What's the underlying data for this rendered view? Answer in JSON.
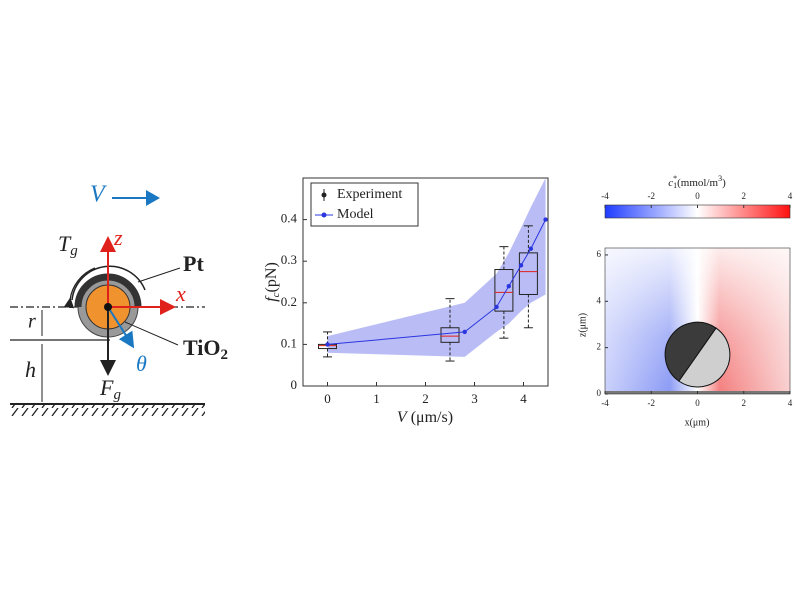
{
  "diagram": {
    "velocity": "V",
    "z_axis": "z",
    "x_axis": "x",
    "torque": {
      "symbol": "T",
      "sub": "g"
    },
    "pt": "Pt",
    "r": "r",
    "h": "h",
    "tio2": {
      "base": "TiO",
      "sub": "2"
    },
    "theta": "θ",
    "gravity": {
      "symbol": "F",
      "sub": "g"
    }
  },
  "chart_data": [
    {
      "type": "box",
      "xlabel": {
        "symbol": "V",
        "unit": "(μm/s)"
      },
      "ylabel": {
        "symbol": "f",
        "sub": "c",
        "unit": "(pN)"
      },
      "xlim": [
        -0.5,
        4.5
      ],
      "ylim": [
        0,
        0.5
      ],
      "xticks": [
        0,
        1,
        2,
        3,
        4
      ],
      "yticks": [
        0,
        0.1,
        0.2,
        0.3,
        0.4
      ],
      "legend": "upper left",
      "series": [
        {
          "name": "Experiment",
          "color": "#222222",
          "x": [
            0,
            2.5,
            3.6,
            4.1
          ],
          "whislo": [
            0.07,
            0.06,
            0.115,
            0.14
          ],
          "q1": [
            0.09,
            0.105,
            0.18,
            0.22
          ],
          "med": [
            0.097,
            0.12,
            0.225,
            0.275
          ],
          "q3": [
            0.1,
            0.14,
            0.28,
            0.32
          ],
          "whishi": [
            0.13,
            0.21,
            0.335,
            0.385
          ]
        },
        {
          "name": "Model",
          "color": "#2a35e0",
          "band_color": "#a9acf2",
          "x": [
            0,
            2.8,
            3.45,
            3.7,
            3.95,
            4.15,
            4.45
          ],
          "values": [
            0.1,
            0.13,
            0.19,
            0.24,
            0.29,
            0.33,
            0.4
          ],
          "lower": [
            0.08,
            0.07,
            0.13,
            0.15,
            0.18,
            0.2,
            0.22
          ],
          "upper": [
            0.12,
            0.2,
            0.27,
            0.32,
            0.38,
            0.43,
            0.5
          ]
        }
      ]
    },
    {
      "type": "field",
      "colorbar_label": {
        "symbol": "c",
        "sub": "1",
        "sup": "*",
        "unit": "(mmol/m",
        "unit_sup": "3",
        "close": ")"
      },
      "clim": [
        -4,
        4
      ],
      "cticks": [
        -4,
        -2,
        0,
        2,
        4
      ],
      "xlabel": "x(μm)",
      "ylabel": "z(μm)",
      "xlim": [
        -4,
        4
      ],
      "ylim": [
        0,
        6.3
      ],
      "xticks": [
        -4,
        -2,
        0,
        2,
        4
      ],
      "yticks": [
        0,
        2,
        4,
        6
      ],
      "particle": {
        "x": 0,
        "z": 1.7,
        "radius": 1.4
      }
    }
  ]
}
